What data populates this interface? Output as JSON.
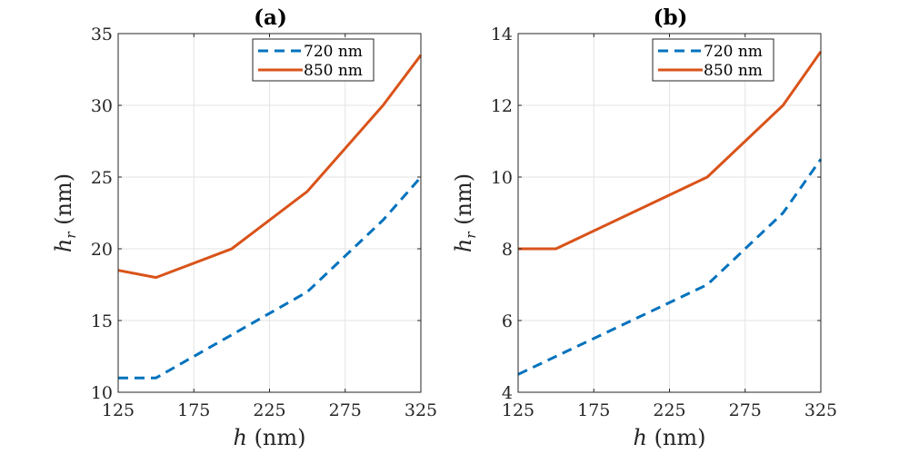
{
  "chart_data": [
    {
      "type": "line",
      "title": "(a)",
      "xlabel": "h (nm)",
      "ylabel": "h_r (nm)",
      "xlim": [
        125,
        325
      ],
      "ylim": [
        10,
        35
      ],
      "xticks": [
        125,
        175,
        225,
        275,
        325
      ],
      "yticks": [
        10,
        15,
        20,
        25,
        30,
        35
      ],
      "grid": true,
      "legend_position": "top-right",
      "series": [
        {
          "name": "720 nm",
          "style": "dashed",
          "color": "#0072BD",
          "x": [
            125,
            150,
            200,
            250,
            300,
            325
          ],
          "y": [
            11,
            11,
            14,
            17,
            22,
            25
          ]
        },
        {
          "name": "850 nm",
          "style": "solid",
          "color": "#D95319",
          "x": [
            125,
            150,
            200,
            250,
            300,
            325
          ],
          "y": [
            18.5,
            18,
            20,
            24,
            30,
            33.5
          ]
        }
      ]
    },
    {
      "type": "line",
      "title": "(b)",
      "xlabel": "h (nm)",
      "ylabel": "h_r (nm)",
      "xlim": [
        125,
        325
      ],
      "ylim": [
        4,
        14
      ],
      "xticks": [
        125,
        175,
        225,
        275,
        325
      ],
      "yticks": [
        4,
        6,
        8,
        10,
        12,
        14
      ],
      "grid": true,
      "legend_position": "top-right",
      "series": [
        {
          "name": "720 nm",
          "style": "dashed",
          "color": "#0072BD",
          "x": [
            125,
            150,
            200,
            250,
            300,
            325
          ],
          "y": [
            4.5,
            5,
            6,
            7,
            9,
            10.5
          ]
        },
        {
          "name": "850 nm",
          "style": "solid",
          "color": "#D95319",
          "x": [
            125,
            150,
            200,
            250,
            300,
            325
          ],
          "y": [
            8,
            8,
            9,
            10,
            12,
            13.5
          ]
        }
      ]
    }
  ],
  "labels": {
    "x_var": "h",
    "x_unit": "(nm)",
    "y_var": "h",
    "y_sub": "r",
    "y_unit": "(nm)"
  }
}
